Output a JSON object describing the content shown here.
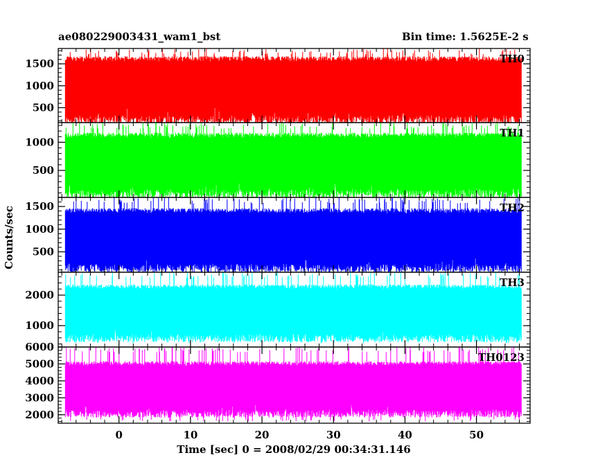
{
  "header": {
    "filename": "ae080229003431_wam1_bst",
    "bin_time": "Bin time: 1.5625E-2 s"
  },
  "chart_data": {
    "type": "line",
    "title": "ae080229003431_wam1_bst",
    "xlabel": "Time [sec] 0 = 2008/02/29 00:34:31.146",
    "ylabel": "Counts/sec",
    "xlim": [
      -8.5,
      57.5
    ],
    "data_xrange": [
      -7.5,
      56.3
    ],
    "x_ticks": [
      0,
      10,
      20,
      30,
      40,
      50
    ],
    "panels": [
      {
        "name": "TH0",
        "color": "#ff0000",
        "ylim": [
          160,
          1850
        ],
        "yticks": [
          500,
          1000,
          1500
        ],
        "band": [
          330,
          1550
        ],
        "min": 190,
        "max": 1850
      },
      {
        "name": "TH1",
        "color": "#00ff00",
        "ylim": [
          20,
          1350
        ],
        "yticks": [
          500,
          1000
        ],
        "band": [
          170,
          1080
        ],
        "min": 40,
        "max": 1350
      },
      {
        "name": "TH2",
        "color": "#0000ff",
        "ylim": [
          50,
          1700
        ],
        "yticks": [
          500,
          1000,
          1500
        ],
        "band": [
          240,
          1350
        ],
        "min": 70,
        "max": 1700
      },
      {
        "name": "TH3",
        "color": "#00ffff",
        "ylim": [
          300,
          2750
        ],
        "yticks": [
          1000,
          2000
        ],
        "band": [
          720,
          2200
        ],
        "min": 420,
        "max": 2750
      },
      {
        "name": "TH0123",
        "color": "#ff00ff",
        "ylim": [
          1500,
          6000
        ],
        "yticks": [
          2000,
          3000,
          4000,
          5000,
          6000
        ],
        "band": [
          2300,
          4900
        ],
        "min": 1600,
        "max": 6000
      }
    ]
  }
}
